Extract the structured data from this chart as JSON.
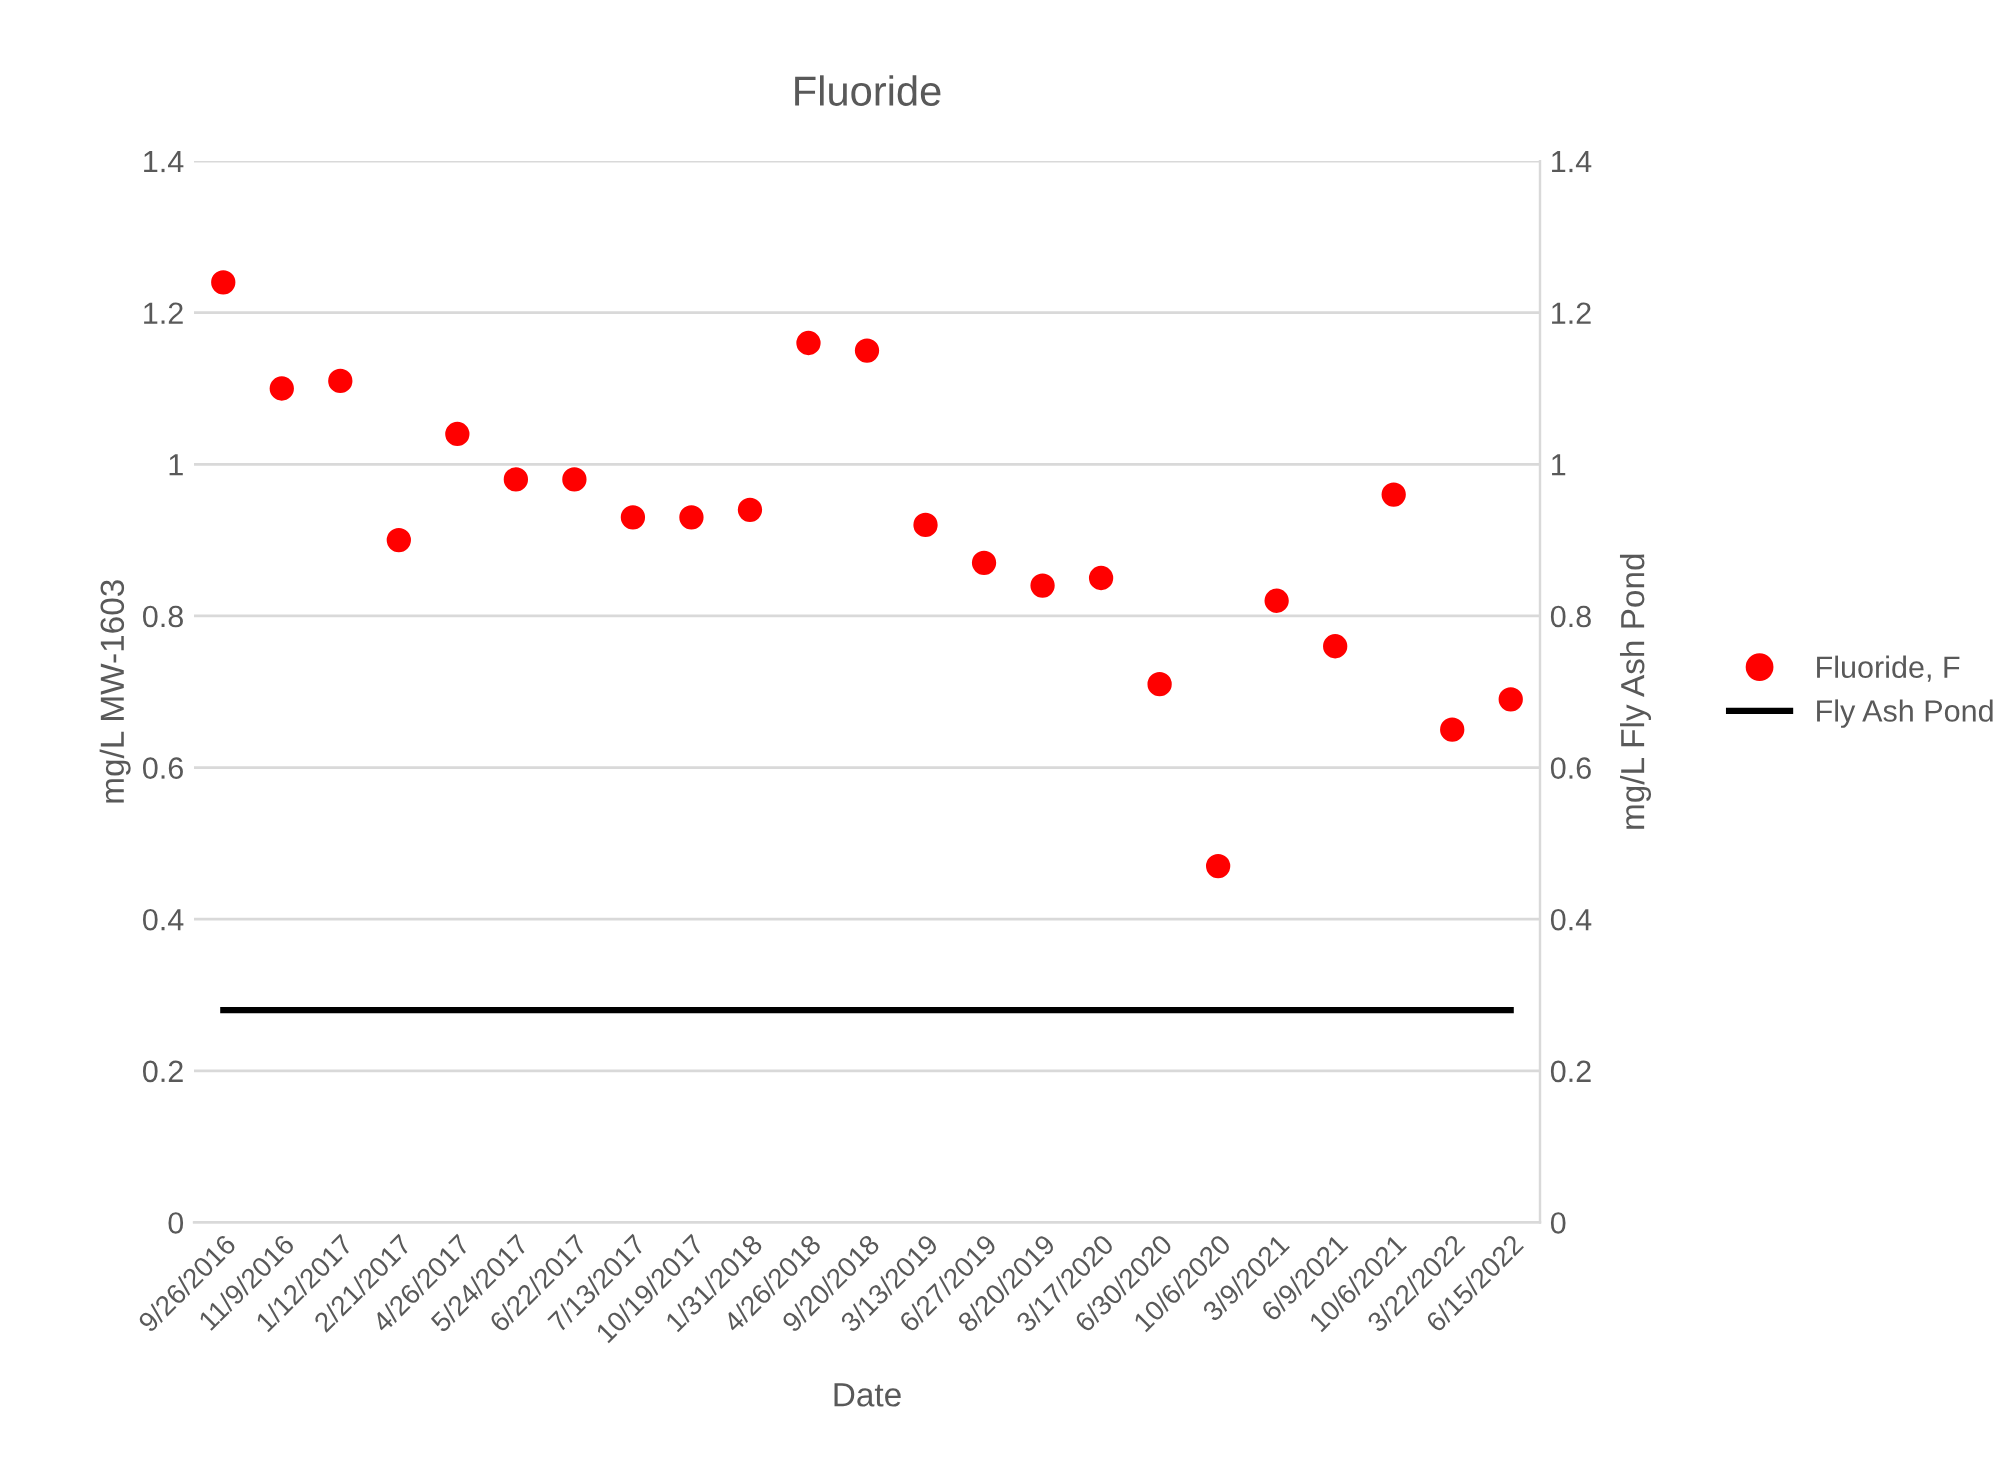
{
  "chart_data": {
    "type": "scatter",
    "title": "Fluoride",
    "xlabel": "Date",
    "ylabel": "mg/L MW-1603",
    "y2label": "mg/L Fly Ash Pond",
    "categories": [
      "9/26/2016",
      "11/9/2016",
      "1/12/2017",
      "2/21/2017",
      "4/26/2017",
      "5/24/2017",
      "6/22/2017",
      "7/13/2017",
      "10/19/2017",
      "1/31/2018",
      "4/26/2018",
      "9/20/2018",
      "3/13/2019",
      "6/27/2019",
      "8/20/2019",
      "3/17/2020",
      "6/30/2020",
      "10/6/2020",
      "3/9/2021",
      "6/9/2021",
      "10/6/2021",
      "3/22/2022",
      "6/15/2022"
    ],
    "series": [
      {
        "name": "Fluoride, F",
        "color": "#ff0000",
        "marker": "circle",
        "values": [
          1.24,
          1.1,
          1.11,
          0.9,
          1.04,
          0.98,
          0.98,
          0.93,
          0.93,
          0.94,
          1.16,
          1.15,
          0.92,
          0.87,
          0.84,
          0.85,
          0.71,
          0.47,
          0.82,
          0.76,
          0.96,
          0.65,
          0.69
        ]
      },
      {
        "name": "Fly Ash Pond",
        "type": "line",
        "axis": "y2",
        "color": "#000000",
        "line_style": "solid",
        "values": [
          0.28,
          0.28,
          0.28,
          0.28,
          0.28,
          0.28,
          0.28,
          0.28,
          0.28,
          0.28,
          0.28,
          0.28,
          0.28,
          0.28,
          0.28,
          0.28,
          0.28,
          0.28,
          0.28,
          0.28,
          0.28,
          0.28,
          0.28
        ]
      }
    ],
    "ylim": [
      0,
      1.4
    ],
    "yticks": [
      0,
      0.2,
      0.4,
      0.6,
      0.8,
      1,
      1.2,
      1.4
    ],
    "y2lim": [
      0,
      1.4
    ],
    "y2ticks": [
      0,
      0.2,
      0.4,
      0.6,
      0.8,
      1,
      1.2,
      1.4
    ],
    "grid": "y",
    "legend": "right"
  }
}
